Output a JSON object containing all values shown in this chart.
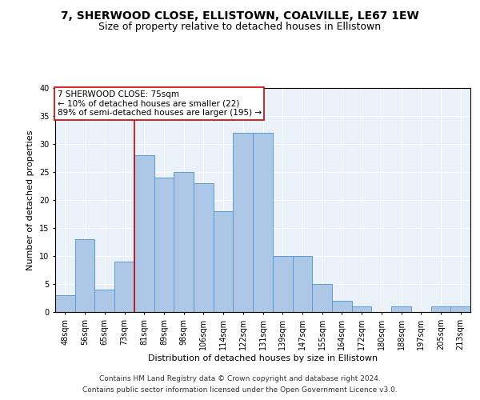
{
  "title": "7, SHERWOOD CLOSE, ELLISTOWN, COALVILLE, LE67 1EW",
  "subtitle": "Size of property relative to detached houses in Ellistown",
  "xlabel": "Distribution of detached houses by size in Ellistown",
  "ylabel": "Number of detached properties",
  "categories": [
    "48sqm",
    "56sqm",
    "65sqm",
    "73sqm",
    "81sqm",
    "89sqm",
    "98sqm",
    "106sqm",
    "114sqm",
    "122sqm",
    "131sqm",
    "139sqm",
    "147sqm",
    "155sqm",
    "164sqm",
    "172sqm",
    "180sqm",
    "188sqm",
    "197sqm",
    "205sqm",
    "213sqm"
  ],
  "values": [
    3,
    13,
    4,
    9,
    28,
    24,
    25,
    23,
    18,
    32,
    32,
    10,
    10,
    5,
    2,
    1,
    0,
    1,
    0,
    1,
    1
  ],
  "bar_color": "#adc8e6",
  "bar_edge_color": "#5b9bd5",
  "background_color": "#eaf1f8",
  "red_line_index": 3.5,
  "annotation_text": "7 SHERWOOD CLOSE: 75sqm\n← 10% of detached houses are smaller (22)\n89% of semi-detached houses are larger (195) →",
  "annotation_box_color": "#ffffff",
  "annotation_box_edge": "#cc0000",
  "footer_line1": "Contains HM Land Registry data © Crown copyright and database right 2024.",
  "footer_line2": "Contains public sector information licensed under the Open Government Licence v3.0.",
  "ylim": [
    0,
    40
  ],
  "yticks": [
    0,
    5,
    10,
    15,
    20,
    25,
    30,
    35,
    40
  ],
  "title_fontsize": 10,
  "subtitle_fontsize": 9,
  "label_fontsize": 8,
  "tick_fontsize": 7,
  "footer_fontsize": 6.5,
  "annotation_fontsize": 7.5
}
